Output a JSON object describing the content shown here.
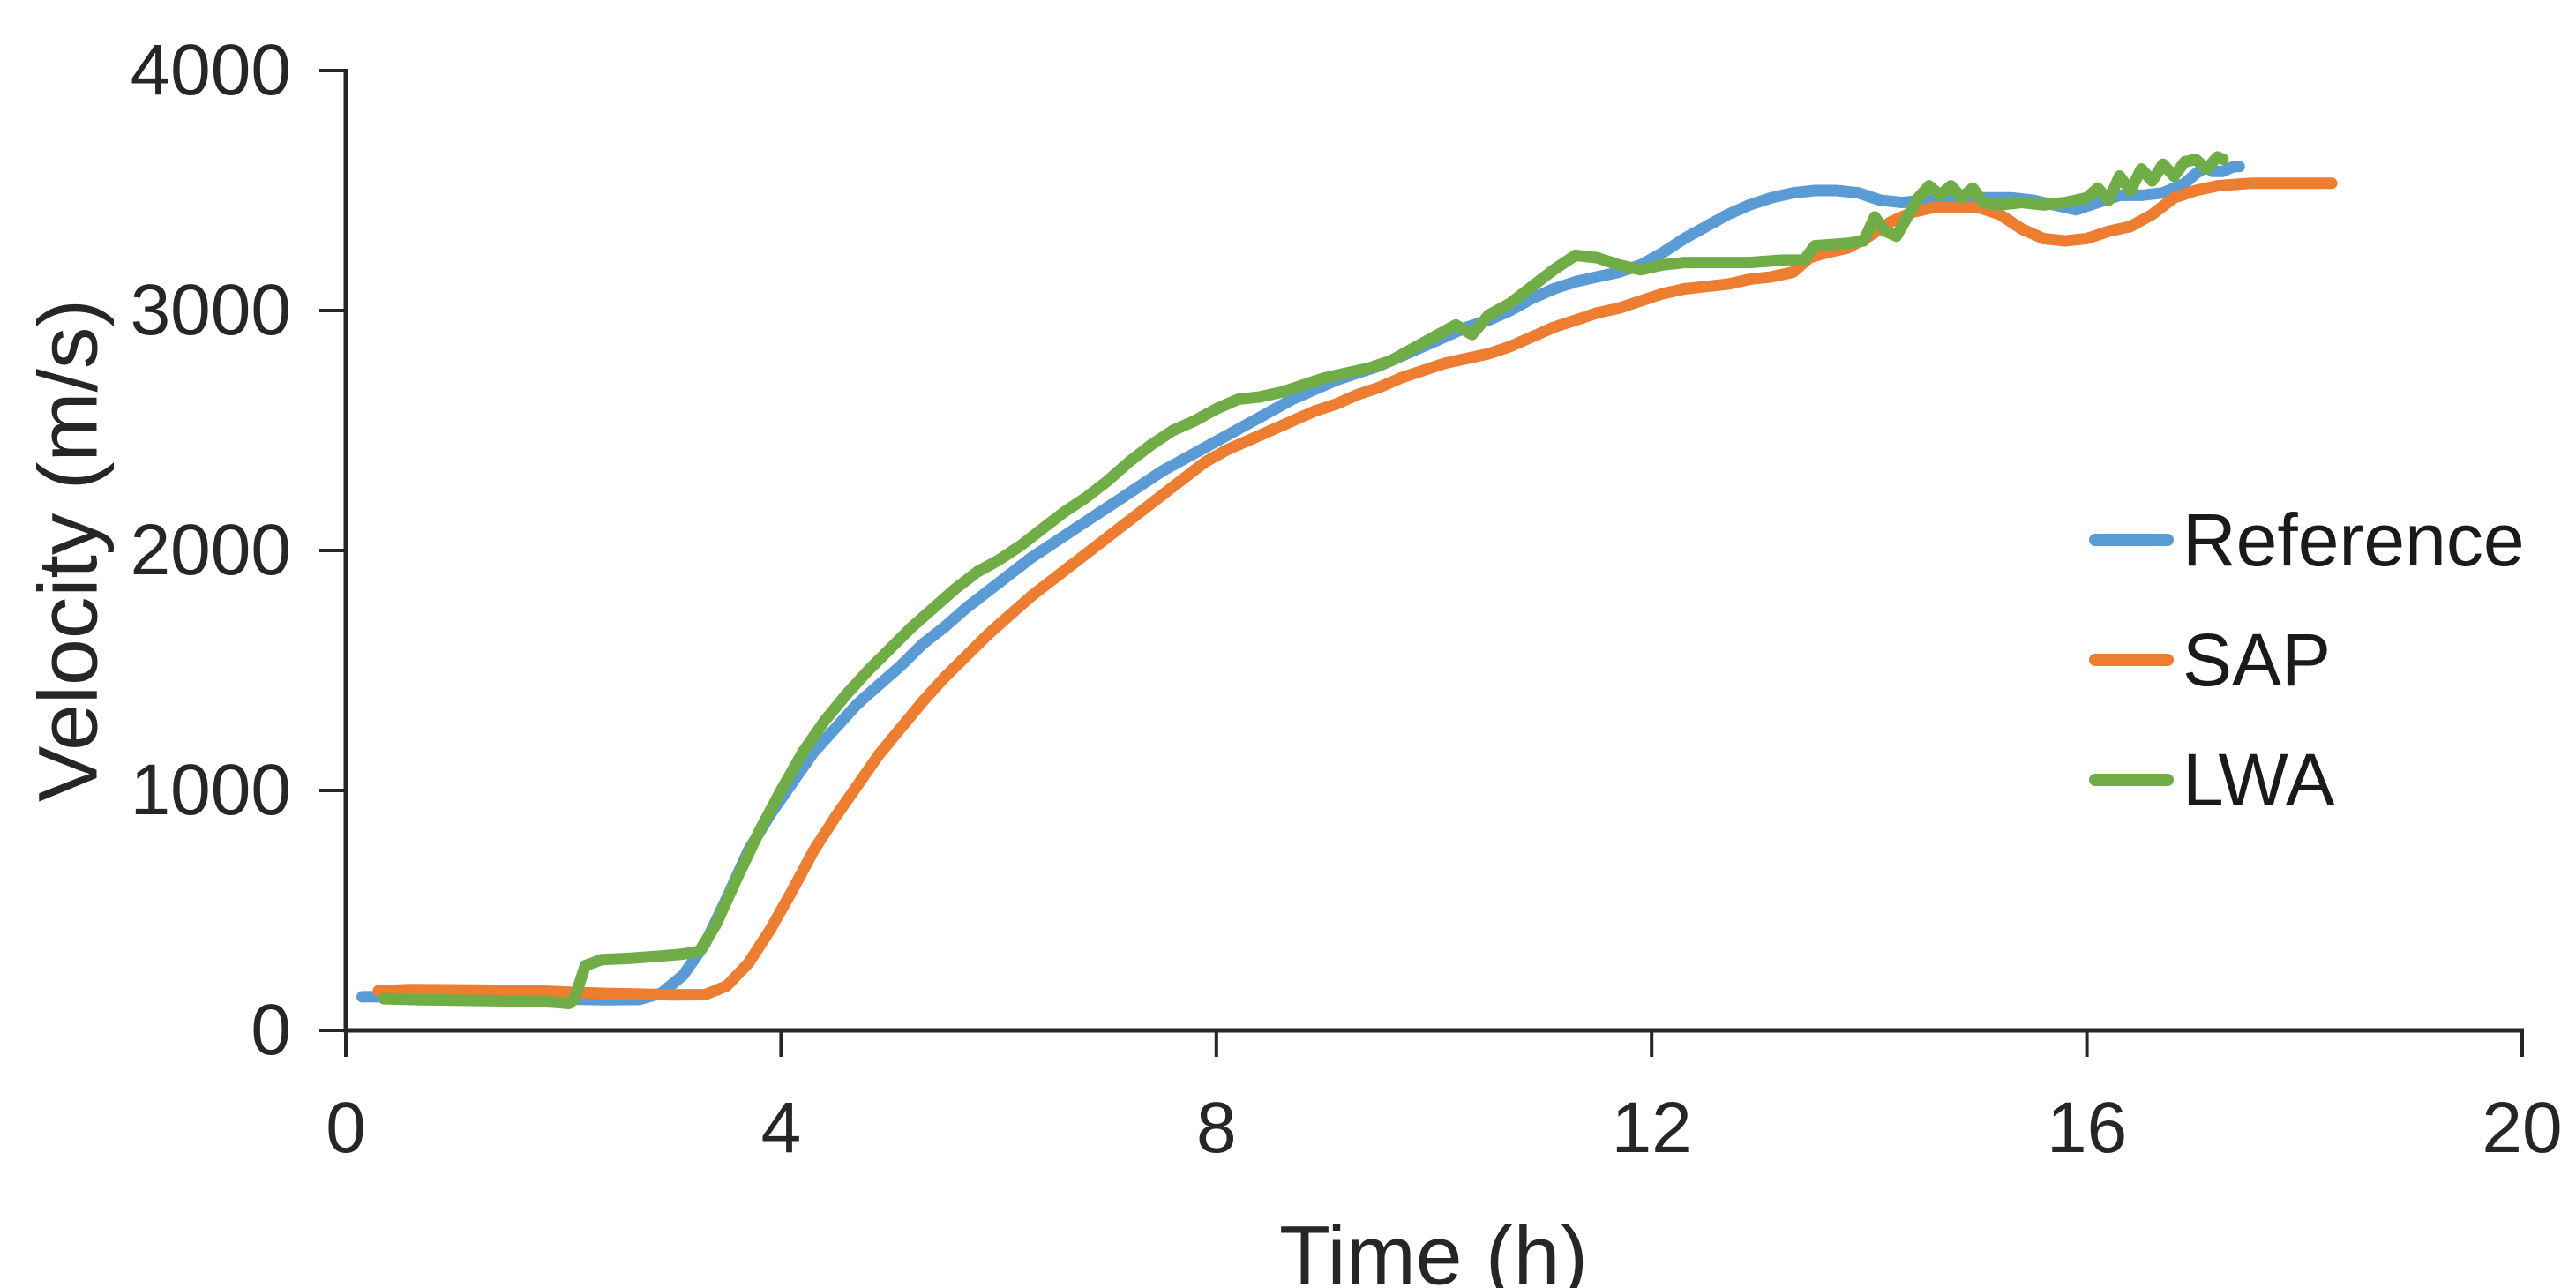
{
  "axes": {
    "x_title": "Time (h)",
    "y_title": "Velocity (m/s)",
    "x_tick_labels": [
      "0",
      "4",
      "8",
      "12",
      "16",
      "20"
    ],
    "y_tick_labels": [
      "4000",
      "3000",
      "2000",
      "1000",
      "0"
    ]
  },
  "colors": {
    "axis": "#262626",
    "text": "#262626",
    "reference": "#5B9BD5",
    "sap": "#ED7D31",
    "lwa": "#70AD47"
  },
  "chart_data": {
    "type": "line",
    "title": "",
    "xlabel": "Time (h)",
    "ylabel": "Velocity (m/s)",
    "xlim": [
      0,
      20
    ],
    "ylim": [
      0,
      4000
    ],
    "x_ticks": [
      0,
      4,
      8,
      12,
      16,
      20
    ],
    "y_ticks": [
      0,
      1000,
      2000,
      3000,
      4000
    ],
    "grid": false,
    "legend_position": "middle-right",
    "series": [
      {
        "name": "Reference",
        "color": "#5B9BD5",
        "points": [
          [
            0.15,
            140
          ],
          [
            0.5,
            141
          ],
          [
            0.9,
            139
          ],
          [
            1.3,
            136
          ],
          [
            1.7,
            133
          ],
          [
            2.1,
            130
          ],
          [
            2.4,
            128
          ],
          [
            2.7,
            129
          ],
          [
            2.9,
            155
          ],
          [
            3.1,
            230
          ],
          [
            3.3,
            360
          ],
          [
            3.5,
            550
          ],
          [
            3.7,
            750
          ],
          [
            3.9,
            900
          ],
          [
            4.1,
            1030
          ],
          [
            4.3,
            1160
          ],
          [
            4.5,
            1260
          ],
          [
            4.7,
            1360
          ],
          [
            4.9,
            1440
          ],
          [
            5.1,
            1520
          ],
          [
            5.3,
            1610
          ],
          [
            5.5,
            1680
          ],
          [
            5.7,
            1760
          ],
          [
            5.9,
            1830
          ],
          [
            6.1,
            1900
          ],
          [
            6.3,
            1970
          ],
          [
            6.5,
            2030
          ],
          [
            6.7,
            2090
          ],
          [
            6.9,
            2150
          ],
          [
            7.1,
            2210
          ],
          [
            7.3,
            2270
          ],
          [
            7.5,
            2330
          ],
          [
            7.7,
            2380
          ],
          [
            7.9,
            2430
          ],
          [
            8.1,
            2480
          ],
          [
            8.3,
            2530
          ],
          [
            8.5,
            2580
          ],
          [
            8.7,
            2630
          ],
          [
            8.9,
            2670
          ],
          [
            9.1,
            2710
          ],
          [
            9.3,
            2740
          ],
          [
            9.5,
            2770
          ],
          [
            9.7,
            2810
          ],
          [
            9.9,
            2850
          ],
          [
            10.1,
            2890
          ],
          [
            10.3,
            2930
          ],
          [
            10.5,
            2960
          ],
          [
            10.7,
            3000
          ],
          [
            10.9,
            3050
          ],
          [
            11.1,
            3090
          ],
          [
            11.3,
            3120
          ],
          [
            11.5,
            3140
          ],
          [
            11.7,
            3160
          ],
          [
            11.9,
            3190
          ],
          [
            12.1,
            3240
          ],
          [
            12.3,
            3300
          ],
          [
            12.5,
            3350
          ],
          [
            12.7,
            3400
          ],
          [
            12.9,
            3440
          ],
          [
            13.1,
            3470
          ],
          [
            13.3,
            3490
          ],
          [
            13.5,
            3500
          ],
          [
            13.7,
            3500
          ],
          [
            13.9,
            3490
          ],
          [
            14.1,
            3460
          ],
          [
            14.3,
            3450
          ],
          [
            14.5,
            3460
          ],
          [
            14.7,
            3460
          ],
          [
            14.9,
            3470
          ],
          [
            15.1,
            3470
          ],
          [
            15.3,
            3470
          ],
          [
            15.5,
            3460
          ],
          [
            15.7,
            3440
          ],
          [
            15.9,
            3420
          ],
          [
            16.1,
            3450
          ],
          [
            16.3,
            3480
          ],
          [
            16.5,
            3480
          ],
          [
            16.7,
            3490
          ],
          [
            16.9,
            3530
          ],
          [
            17.0,
            3570
          ],
          [
            17.1,
            3600
          ],
          [
            17.15,
            3580
          ],
          [
            17.25,
            3580
          ],
          [
            17.35,
            3600
          ],
          [
            17.4,
            3600
          ]
        ]
      },
      {
        "name": "SAP",
        "color": "#ED7D31",
        "points": [
          [
            0.3,
            165
          ],
          [
            0.6,
            170
          ],
          [
            0.9,
            169
          ],
          [
            1.2,
            168
          ],
          [
            1.5,
            166
          ],
          [
            1.8,
            164
          ],
          [
            2.1,
            158
          ],
          [
            2.4,
            154
          ],
          [
            2.7,
            151
          ],
          [
            3.0,
            148
          ],
          [
            3.3,
            149
          ],
          [
            3.5,
            185
          ],
          [
            3.7,
            280
          ],
          [
            3.9,
            420
          ],
          [
            4.1,
            580
          ],
          [
            4.3,
            750
          ],
          [
            4.5,
            890
          ],
          [
            4.7,
            1020
          ],
          [
            4.9,
            1150
          ],
          [
            5.1,
            1260
          ],
          [
            5.3,
            1370
          ],
          [
            5.5,
            1470
          ],
          [
            5.7,
            1560
          ],
          [
            5.9,
            1650
          ],
          [
            6.1,
            1730
          ],
          [
            6.3,
            1810
          ],
          [
            6.5,
            1880
          ],
          [
            6.7,
            1950
          ],
          [
            6.9,
            2020
          ],
          [
            7.1,
            2090
          ],
          [
            7.3,
            2160
          ],
          [
            7.5,
            2230
          ],
          [
            7.7,
            2300
          ],
          [
            7.9,
            2370
          ],
          [
            8.1,
            2420
          ],
          [
            8.3,
            2460
          ],
          [
            8.5,
            2500
          ],
          [
            8.7,
            2540
          ],
          [
            8.9,
            2580
          ],
          [
            9.1,
            2610
          ],
          [
            9.3,
            2650
          ],
          [
            9.5,
            2680
          ],
          [
            9.7,
            2720
          ],
          [
            9.9,
            2750
          ],
          [
            10.1,
            2780
          ],
          [
            10.3,
            2800
          ],
          [
            10.5,
            2820
          ],
          [
            10.7,
            2850
          ],
          [
            10.9,
            2890
          ],
          [
            11.1,
            2930
          ],
          [
            11.3,
            2960
          ],
          [
            11.5,
            2990
          ],
          [
            11.7,
            3010
          ],
          [
            11.9,
            3040
          ],
          [
            12.1,
            3070
          ],
          [
            12.3,
            3090
          ],
          [
            12.5,
            3100
          ],
          [
            12.7,
            3110
          ],
          [
            12.9,
            3130
          ],
          [
            13.1,
            3140
          ],
          [
            13.3,
            3160
          ],
          [
            13.45,
            3220
          ],
          [
            13.6,
            3240
          ],
          [
            13.8,
            3260
          ],
          [
            14.0,
            3310
          ],
          [
            14.2,
            3370
          ],
          [
            14.4,
            3410
          ],
          [
            14.6,
            3430
          ],
          [
            14.8,
            3430
          ],
          [
            15.0,
            3430
          ],
          [
            15.2,
            3400
          ],
          [
            15.4,
            3340
          ],
          [
            15.6,
            3300
          ],
          [
            15.8,
            3290
          ],
          [
            16.0,
            3300
          ],
          [
            16.2,
            3330
          ],
          [
            16.4,
            3350
          ],
          [
            16.6,
            3400
          ],
          [
            16.8,
            3470
          ],
          [
            17.0,
            3500
          ],
          [
            17.2,
            3520
          ],
          [
            17.5,
            3530
          ],
          [
            18.0,
            3530
          ],
          [
            18.25,
            3530
          ]
        ]
      },
      {
        "name": "LWA",
        "color": "#70AD47",
        "points": [
          [
            0.35,
            132
          ],
          [
            0.7,
            128
          ],
          [
            1.0,
            126
          ],
          [
            1.3,
            124
          ],
          [
            1.6,
            122
          ],
          [
            1.9,
            118
          ],
          [
            2.05,
            112
          ],
          [
            2.1,
            130
          ],
          [
            2.2,
            270
          ],
          [
            2.35,
            295
          ],
          [
            2.6,
            300
          ],
          [
            2.9,
            310
          ],
          [
            3.1,
            318
          ],
          [
            3.25,
            330
          ],
          [
            3.4,
            440
          ],
          [
            3.6,
            640
          ],
          [
            3.8,
            830
          ],
          [
            4.0,
            1000
          ],
          [
            4.2,
            1160
          ],
          [
            4.4,
            1290
          ],
          [
            4.6,
            1400
          ],
          [
            4.8,
            1500
          ],
          [
            5.0,
            1590
          ],
          [
            5.2,
            1680
          ],
          [
            5.4,
            1760
          ],
          [
            5.6,
            1840
          ],
          [
            5.8,
            1910
          ],
          [
            6.0,
            1960
          ],
          [
            6.2,
            2020
          ],
          [
            6.4,
            2090
          ],
          [
            6.6,
            2160
          ],
          [
            6.8,
            2220
          ],
          [
            7.0,
            2290
          ],
          [
            7.2,
            2370
          ],
          [
            7.4,
            2440
          ],
          [
            7.6,
            2500
          ],
          [
            7.8,
            2540
          ],
          [
            8.0,
            2590
          ],
          [
            8.2,
            2630
          ],
          [
            8.4,
            2640
          ],
          [
            8.6,
            2660
          ],
          [
            8.8,
            2690
          ],
          [
            9.0,
            2720
          ],
          [
            9.2,
            2740
          ],
          [
            9.4,
            2760
          ],
          [
            9.6,
            2790
          ],
          [
            9.8,
            2840
          ],
          [
            10.0,
            2890
          ],
          [
            10.2,
            2940
          ],
          [
            10.35,
            2900
          ],
          [
            10.5,
            2980
          ],
          [
            10.7,
            3030
          ],
          [
            10.9,
            3100
          ],
          [
            11.1,
            3170
          ],
          [
            11.3,
            3230
          ],
          [
            11.5,
            3220
          ],
          [
            11.7,
            3190
          ],
          [
            11.9,
            3170
          ],
          [
            12.1,
            3190
          ],
          [
            12.3,
            3200
          ],
          [
            12.6,
            3200
          ],
          [
            12.9,
            3200
          ],
          [
            13.2,
            3210
          ],
          [
            13.4,
            3210
          ],
          [
            13.5,
            3270
          ],
          [
            13.8,
            3280
          ],
          [
            13.95,
            3290
          ],
          [
            14.0,
            3340
          ],
          [
            14.05,
            3390
          ],
          [
            14.15,
            3330
          ],
          [
            14.25,
            3310
          ],
          [
            14.35,
            3390
          ],
          [
            14.45,
            3470
          ],
          [
            14.55,
            3520
          ],
          [
            14.65,
            3480
          ],
          [
            14.75,
            3520
          ],
          [
            14.85,
            3470
          ],
          [
            14.95,
            3510
          ],
          [
            15.05,
            3450
          ],
          [
            15.2,
            3440
          ],
          [
            15.4,
            3450
          ],
          [
            15.6,
            3440
          ],
          [
            15.8,
            3450
          ],
          [
            16.0,
            3470
          ],
          [
            16.1,
            3510
          ],
          [
            16.2,
            3460
          ],
          [
            16.3,
            3560
          ],
          [
            16.4,
            3500
          ],
          [
            16.5,
            3590
          ],
          [
            16.6,
            3540
          ],
          [
            16.7,
            3610
          ],
          [
            16.8,
            3560
          ],
          [
            16.9,
            3620
          ],
          [
            17.0,
            3630
          ],
          [
            17.1,
            3590
          ],
          [
            17.2,
            3640
          ],
          [
            17.25,
            3630
          ]
        ]
      }
    ]
  }
}
